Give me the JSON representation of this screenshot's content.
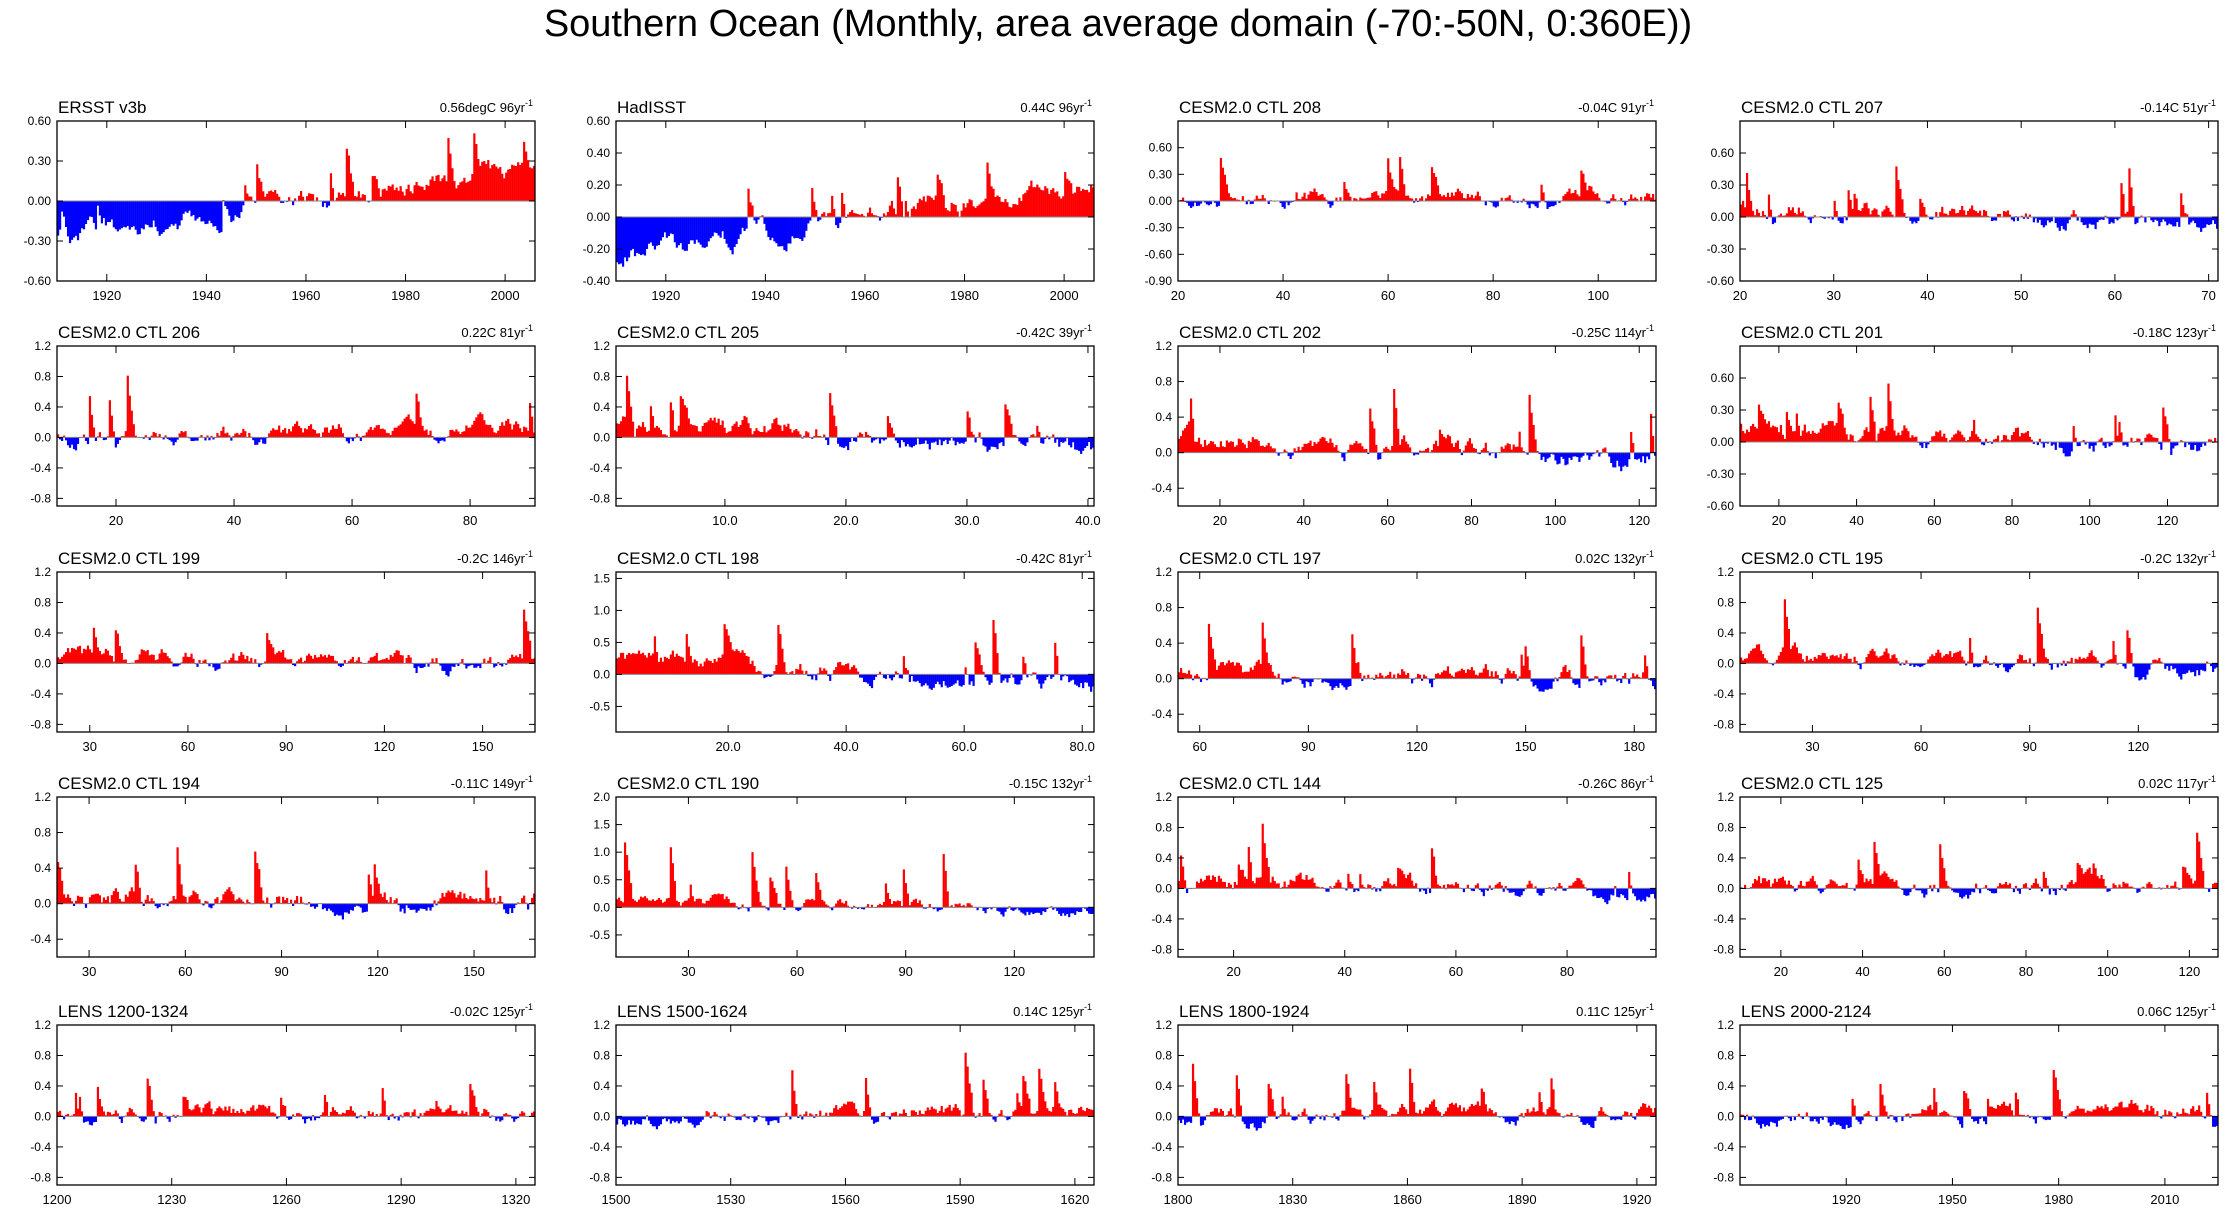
{
  "title": "Southern Ocean (Monthly, area average domain (-70:-50N, 0:360E))",
  "colors": {
    "positive": "#ff0000",
    "negative": "#0000ff",
    "axis": "#000000",
    "zero_line": "#888888"
  },
  "chart_data": [
    {
      "type": "bar",
      "title": "ERSST v3b",
      "trend_value": "0.56degC 96yr",
      "trend_unit_sup": "-1",
      "ylim": [
        -0.6,
        0.6
      ],
      "yticks": [
        "0.60",
        "0.30",
        "0.00",
        "-0.30",
        "-0.60"
      ],
      "ytick_values": [
        0.6,
        0.3,
        0,
        -0.3,
        -0.6
      ],
      "xlim": [
        1910,
        2006
      ],
      "xticks": [
        "1920",
        "1940",
        "1960",
        "1980",
        "2000"
      ],
      "xtick_values": [
        1920,
        1940,
        1960,
        1980,
        2000
      ],
      "baseline": [
        -0.28,
        0.25
      ],
      "noise": 0.1,
      "pos_bias": 0,
      "seed": 1
    },
    {
      "type": "bar",
      "title": "HadISST",
      "trend_value": "0.44C 96yr",
      "trend_unit_sup": "-1",
      "ylim": [
        -0.4,
        0.6
      ],
      "yticks": [
        "0.60",
        "0.40",
        "0.20",
        "0.00",
        "-0.20",
        "-0.40"
      ],
      "ytick_values": [
        0.6,
        0.4,
        0.2,
        0,
        -0.2,
        -0.4
      ],
      "xlim": [
        1910,
        2006
      ],
      "xticks": [
        "1920",
        "1940",
        "1960",
        "1980",
        "2000"
      ],
      "xtick_values": [
        1920,
        1940,
        1960,
        1980,
        2000
      ],
      "baseline": [
        -0.24,
        0.21
      ],
      "noise": 0.09,
      "pos_bias": 0,
      "seed": 2
    },
    {
      "type": "bar",
      "title": "CESM2.0 CTL 208",
      "trend_value": "-0.04C 91yr",
      "trend_unit_sup": "-1",
      "ylim": [
        -0.9,
        0.9
      ],
      "yticks": [
        "0.60",
        "0.30",
        "0.00",
        "-0.30",
        "-0.60",
        "-0.90"
      ],
      "ytick_values": [
        0.6,
        0.3,
        0,
        -0.3,
        -0.6,
        -0.9
      ],
      "xlim": [
        20,
        111
      ],
      "xticks": [
        "20",
        "40",
        "60",
        "80",
        "100"
      ],
      "xtick_values": [
        20,
        40,
        60,
        80,
        100
      ],
      "baseline": [
        0,
        0
      ],
      "noise": 0.11,
      "pos_bias": 0.02,
      "seed": 3
    },
    {
      "type": "bar",
      "title": "CESM2.0 CTL 207",
      "trend_value": "-0.14C 51yr",
      "trend_unit_sup": "-1",
      "ylim": [
        -0.6,
        0.9
      ],
      "yticks": [
        "0.60",
        "0.30",
        "0.00",
        "-0.30",
        "-0.60"
      ],
      "ytick_values": [
        0.6,
        0.3,
        0,
        -0.3,
        -0.6
      ],
      "xlim": [
        20,
        71
      ],
      "xticks": [
        "20",
        "30",
        "40",
        "50",
        "60",
        "70"
      ],
      "xtick_values": [
        20,
        30,
        40,
        50,
        60,
        70
      ],
      "baseline": [
        0.07,
        -0.07
      ],
      "noise": 0.11,
      "pos_bias": 0.03,
      "seed": 4
    },
    {
      "type": "bar",
      "title": "CESM2.0 CTL 206",
      "trend_value": "0.22C 81yr",
      "trend_unit_sup": "-1",
      "ylim": [
        -0.9,
        1.2
      ],
      "yticks": [
        "1.2",
        "0.8",
        "0.4",
        "0.0",
        "-0.4",
        "-0.8"
      ],
      "ytick_values": [
        1.2,
        0.8,
        0.4,
        0,
        -0.4,
        -0.8
      ],
      "xlim": [
        10,
        91
      ],
      "xticks": [
        "20",
        "40",
        "60",
        "80"
      ],
      "xtick_values": [
        20,
        40,
        60,
        80
      ],
      "baseline": [
        -0.05,
        0.08
      ],
      "noise": 0.15,
      "pos_bias": 0.02,
      "seed": 5
    },
    {
      "type": "bar",
      "title": "CESM2.0 CTL 205",
      "trend_value": "-0.42C 39yr",
      "trend_unit_sup": "-1",
      "ylim": [
        -0.9,
        1.2
      ],
      "yticks": [
        "1.2",
        "0.8",
        "0.4",
        "0.0",
        "-0.4",
        "-0.8"
      ],
      "ytick_values": [
        1.2,
        0.8,
        0.4,
        0,
        -0.4,
        -0.8
      ],
      "xlim": [
        1,
        40.5
      ],
      "xticks": [
        "10.0",
        "20.0",
        "30.0",
        "40.0"
      ],
      "xtick_values": [
        10,
        20,
        30,
        40
      ],
      "baseline": [
        0.2,
        -0.2
      ],
      "noise": 0.17,
      "pos_bias": 0.02,
      "seed": 6
    },
    {
      "type": "bar",
      "title": "CESM2.0 CTL 202",
      "trend_value": "-0.25C 114yr",
      "trend_unit_sup": "-1",
      "ylim": [
        -0.6,
        1.2
      ],
      "yticks": [
        "1.2",
        "0.8",
        "0.4",
        "0.0",
        "-0.4"
      ],
      "ytick_values": [
        1.2,
        0.8,
        0.4,
        0,
        -0.4
      ],
      "xlim": [
        10,
        124
      ],
      "xticks": [
        "20",
        "40",
        "60",
        "80",
        "100",
        "120"
      ],
      "xtick_values": [
        20,
        40,
        60,
        80,
        100,
        120
      ],
      "baseline": [
        0.12,
        -0.12
      ],
      "noise": 0.15,
      "pos_bias": 0.02,
      "seed": 7
    },
    {
      "type": "bar",
      "title": "CESM2.0 CTL 201",
      "trend_value": "-0.18C 123yr",
      "trend_unit_sup": "-1",
      "ylim": [
        -0.6,
        0.9
      ],
      "yticks": [
        "0.60",
        "0.30",
        "0.00",
        "-0.30",
        "-0.60"
      ],
      "ytick_values": [
        0.6,
        0.3,
        0,
        -0.3,
        -0.6
      ],
      "xlim": [
        10,
        133
      ],
      "xticks": [
        "20",
        "40",
        "60",
        "80",
        "100",
        "120"
      ],
      "xtick_values": [
        20,
        40,
        60,
        80,
        100,
        120
      ],
      "baseline": [
        0.1,
        -0.1
      ],
      "noise": 0.12,
      "pos_bias": 0.02,
      "seed": 8
    },
    {
      "type": "bar",
      "title": "CESM2.0 CTL 199",
      "trend_value": "-0.2C 146yr",
      "trend_unit_sup": "-1",
      "ylim": [
        -0.9,
        1.2
      ],
      "yticks": [
        "1.2",
        "0.8",
        "0.4",
        "0.0",
        "-0.4",
        "-0.8"
      ],
      "ytick_values": [
        1.2,
        0.8,
        0.4,
        0,
        -0.4,
        -0.8
      ],
      "xlim": [
        20,
        166
      ],
      "xticks": [
        "30",
        "60",
        "90",
        "120",
        "150"
      ],
      "xtick_values": [
        30,
        60,
        90,
        120,
        150
      ],
      "baseline": [
        0.1,
        -0.1
      ],
      "noise": 0.15,
      "pos_bias": 0.02,
      "seed": 9
    },
    {
      "type": "bar",
      "title": "CESM2.0 CTL 198",
      "trend_value": "-0.42C 81yr",
      "trend_unit_sup": "-1",
      "ylim": [
        -0.9,
        1.6
      ],
      "yticks": [
        "1.5",
        "1.0",
        "0.5",
        "0.0",
        "-0.5"
      ],
      "ytick_values": [
        1.5,
        1,
        0.5,
        0,
        -0.5
      ],
      "xlim": [
        1,
        82
      ],
      "xticks": [
        "20.0",
        "40.0",
        "60.0",
        "80.0"
      ],
      "xtick_values": [
        20,
        40,
        60,
        80
      ],
      "baseline": [
        0.22,
        -0.2
      ],
      "noise": 0.18,
      "pos_bias": 0.02,
      "seed": 10
    },
    {
      "type": "bar",
      "title": "CESM2.0 CTL 197",
      "trend_value": "0.02C 132yr",
      "trend_unit_sup": "-1",
      "ylim": [
        -0.6,
        1.2
      ],
      "yticks": [
        "1.2",
        "0.8",
        "0.4",
        "0.0",
        "-0.4"
      ],
      "ytick_values": [
        1.2,
        0.8,
        0.4,
        0,
        -0.4
      ],
      "xlim": [
        54,
        186
      ],
      "xticks": [
        "60",
        "90",
        "120",
        "150",
        "180"
      ],
      "xtick_values": [
        60,
        90,
        120,
        150,
        180
      ],
      "baseline": [
        0,
        0
      ],
      "noise": 0.14,
      "pos_bias": 0.02,
      "seed": 11
    },
    {
      "type": "bar",
      "title": "CESM2.0 CTL 195",
      "trend_value": "-0.2C 132yr",
      "trend_unit_sup": "-1",
      "ylim": [
        -0.9,
        1.2
      ],
      "yticks": [
        "1.2",
        "0.8",
        "0.4",
        "0.0",
        "-0.4",
        "-0.8"
      ],
      "ytick_values": [
        1.2,
        0.8,
        0.4,
        0,
        -0.4,
        -0.8
      ],
      "xlim": [
        10,
        142
      ],
      "xticks": [
        "30",
        "60",
        "90",
        "120"
      ],
      "xtick_values": [
        30,
        60,
        90,
        120
      ],
      "baseline": [
        0.1,
        -0.1
      ],
      "noise": 0.14,
      "pos_bias": 0.02,
      "seed": 12
    },
    {
      "type": "bar",
      "title": "CESM2.0 CTL 194",
      "trend_value": "-0.11C 149yr",
      "trend_unit_sup": "-1",
      "ylim": [
        -0.6,
        1.2
      ],
      "yticks": [
        "1.2",
        "0.8",
        "0.4",
        "0.0",
        "-0.4"
      ],
      "ytick_values": [
        1.2,
        0.8,
        0.4,
        0,
        -0.4
      ],
      "xlim": [
        20,
        169
      ],
      "xticks": [
        "30",
        "60",
        "90",
        "120",
        "150"
      ],
      "xtick_values": [
        30,
        60,
        90,
        120,
        150
      ],
      "baseline": [
        0.06,
        -0.06
      ],
      "noise": 0.15,
      "pos_bias": 0.02,
      "seed": 13
    },
    {
      "type": "bar",
      "title": "CESM2.0 CTL 190",
      "trend_value": "-0.15C 132yr",
      "trend_unit_sup": "-1",
      "ylim": [
        -0.9,
        2.0
      ],
      "yticks": [
        "2.0",
        "1.5",
        "1.0",
        "0.5",
        "0.0",
        "-0.5"
      ],
      "ytick_values": [
        2,
        1.5,
        1,
        0.5,
        0,
        -0.5
      ],
      "xlim": [
        10,
        142
      ],
      "xticks": [
        "30",
        "60",
        "90",
        "120"
      ],
      "xtick_values": [
        30,
        60,
        90,
        120
      ],
      "baseline": [
        0.08,
        -0.08
      ],
      "noise": 0.14,
      "pos_bias": 0.02,
      "seed": 14
    },
    {
      "type": "bar",
      "title": "CESM2.0 CTL 144",
      "trend_value": "-0.26C 86yr",
      "trend_unit_sup": "-1",
      "ylim": [
        -0.9,
        1.2
      ],
      "yticks": [
        "1.2",
        "0.8",
        "0.4",
        "0.0",
        "-0.4",
        "-0.8"
      ],
      "ytick_values": [
        1.2,
        0.8,
        0.4,
        0,
        -0.4,
        -0.8
      ],
      "xlim": [
        10,
        96
      ],
      "xticks": [
        "20",
        "40",
        "60",
        "80"
      ],
      "xtick_values": [
        20,
        40,
        60,
        80
      ],
      "baseline": [
        0.13,
        -0.12
      ],
      "noise": 0.15,
      "pos_bias": 0.02,
      "seed": 15
    },
    {
      "type": "bar",
      "title": "CESM2.0 CTL 125",
      "trend_value": "0.02C 117yr",
      "trend_unit_sup": "-1",
      "ylim": [
        -0.9,
        1.2
      ],
      "yticks": [
        "1.2",
        "0.8",
        "0.4",
        "0.0",
        "-0.4",
        "-0.8"
      ],
      "ytick_values": [
        1.2,
        0.8,
        0.4,
        0,
        -0.4,
        -0.8
      ],
      "xlim": [
        10,
        127
      ],
      "xticks": [
        "20",
        "40",
        "60",
        "80",
        "100",
        "120"
      ],
      "xtick_values": [
        20,
        40,
        60,
        80,
        100,
        120
      ],
      "baseline": [
        0,
        0
      ],
      "noise": 0.15,
      "pos_bias": 0.02,
      "seed": 16
    },
    {
      "type": "bar",
      "title": "LENS 1200-1324",
      "trend_value": "-0.02C 125yr",
      "trend_unit_sup": "-1",
      "ylim": [
        -0.9,
        1.2
      ],
      "yticks": [
        "1.2",
        "0.8",
        "0.4",
        "0.0",
        "-0.4",
        "-0.8"
      ],
      "ytick_values": [
        1.2,
        0.8,
        0.4,
        0,
        -0.4,
        -0.8
      ],
      "xlim": [
        1200,
        1325
      ],
      "xticks": [
        "1200",
        "1230",
        "1260",
        "1290",
        "1320"
      ],
      "xtick_values": [
        1200,
        1230,
        1260,
        1290,
        1320
      ],
      "baseline": [
        0,
        0
      ],
      "noise": 0.14,
      "pos_bias": 0.02,
      "seed": 17
    },
    {
      "type": "bar",
      "title": "LENS 1500-1624",
      "trend_value": "0.14C 125yr",
      "trend_unit_sup": "-1",
      "ylim": [
        -0.9,
        1.2
      ],
      "yticks": [
        "1.2",
        "0.8",
        "0.4",
        "0.0",
        "-0.4",
        "-0.8"
      ],
      "ytick_values": [
        1.2,
        0.8,
        0.4,
        0,
        -0.4,
        -0.8
      ],
      "xlim": [
        1500,
        1625
      ],
      "xticks": [
        "1500",
        "1530",
        "1560",
        "1590",
        "1620"
      ],
      "xtick_values": [
        1500,
        1530,
        1560,
        1590,
        1620
      ],
      "baseline": [
        -0.07,
        0.07
      ],
      "noise": 0.14,
      "pos_bias": 0.02,
      "seed": 18
    },
    {
      "type": "bar",
      "title": "LENS 1800-1924",
      "trend_value": "0.11C 125yr",
      "trend_unit_sup": "-1",
      "ylim": [
        -0.9,
        1.2
      ],
      "yticks": [
        "1.2",
        "0.8",
        "0.4",
        "0.0",
        "-0.4",
        "-0.8"
      ],
      "ytick_values": [
        1.2,
        0.8,
        0.4,
        0,
        -0.4,
        -0.8
      ],
      "xlim": [
        1800,
        1925
      ],
      "xticks": [
        "1800",
        "1830",
        "1860",
        "1890",
        "1920"
      ],
      "xtick_values": [
        1800,
        1830,
        1860,
        1890,
        1920
      ],
      "baseline": [
        -0.06,
        0.05
      ],
      "noise": 0.14,
      "pos_bias": 0.02,
      "seed": 19
    },
    {
      "type": "bar",
      "title": "LENS 2000-2124",
      "trend_value": "0.06C 125yr",
      "trend_unit_sup": "-1",
      "ylim": [
        -0.9,
        1.2
      ],
      "yticks": [
        "1.2",
        "0.8",
        "0.4",
        "0.0",
        "-0.4",
        "-0.8"
      ],
      "ytick_values": [
        1.2,
        0.8,
        0.4,
        0,
        -0.4,
        -0.8
      ],
      "xlim": [
        1890,
        2025
      ],
      "xticks": [
        "1920",
        "1950",
        "1980",
        "2010"
      ],
      "xtick_values": [
        1920,
        1950,
        1980,
        2010
      ],
      "baseline": [
        -0.03,
        0.03
      ],
      "noise": 0.14,
      "pos_bias": 0.02,
      "seed": 20
    }
  ]
}
